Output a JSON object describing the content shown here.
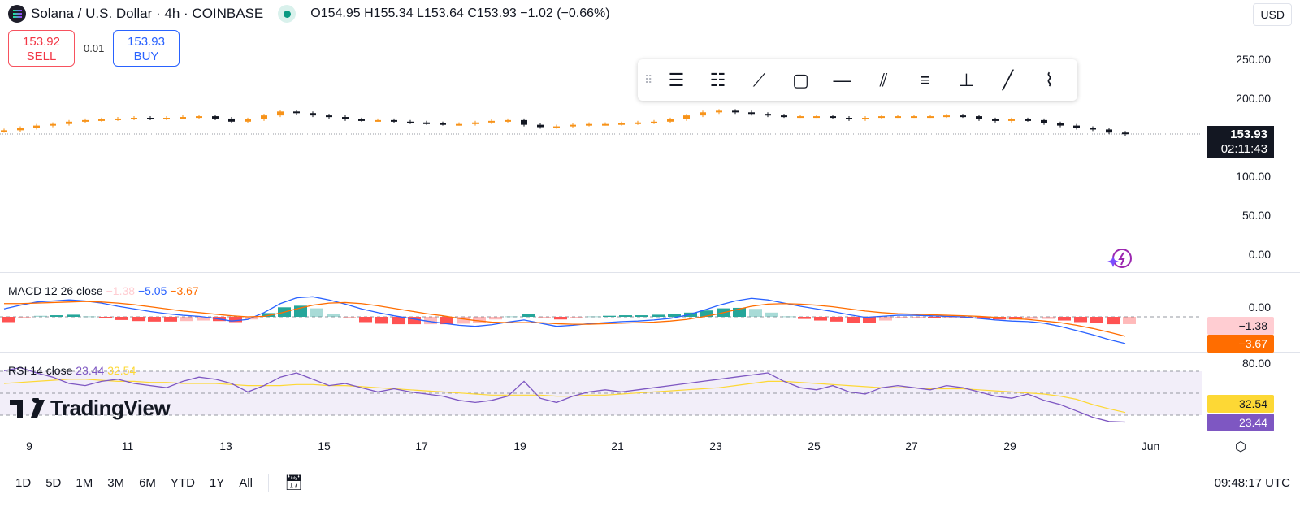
{
  "header": {
    "symbol": "Solana / U.S. Dollar · 4h · COINBASE",
    "ohlc": "O154.95 H155.34 L153.64 C153.93 −1.02 (−0.66%)",
    "currency": "USD"
  },
  "trade": {
    "sell_price": "153.92",
    "sell_label": "SELL",
    "spread": "0.01",
    "buy_price": "153.93",
    "buy_label": "BUY"
  },
  "toolbar": {
    "icons": [
      "pitchfork-icon",
      "fib-retracement-icon",
      "brush-icon",
      "rectangle-icon",
      "horizontal-line-icon",
      "parallel-channel-icon",
      "horizontal-rays-icon",
      "price-range-icon",
      "trend-line-icon",
      "path-icon"
    ]
  },
  "price_axis": {
    "ticks": [
      "250.00",
      "200.00",
      "100.00",
      "50.00",
      "0.00"
    ],
    "last_price": "153.93",
    "countdown": "02:11:43"
  },
  "macd": {
    "legend": "MACD 12 26 close",
    "hist": "−1.38",
    "macd": "−5.05",
    "signal": "−3.67",
    "axis_zero": "0.00"
  },
  "rsi": {
    "legend": "RSI 14 close",
    "rsi": "23.44",
    "ma": "32.54",
    "axis_top": "80.00"
  },
  "x_axis": {
    "labels": [
      "9",
      "11",
      "13",
      "15",
      "17",
      "19",
      "21",
      "23",
      "25",
      "27",
      "29",
      "Jun"
    ]
  },
  "bottom": {
    "ranges": [
      "1D",
      "5D",
      "1M",
      "3M",
      "6M",
      "YTD",
      "1Y",
      "All"
    ],
    "time": "09:48:17 UTC"
  },
  "brand": "TradingView",
  "colors": {
    "up": "#f7931a",
    "down": "#131722",
    "macd": "#2962ff",
    "signal": "#ff6d00",
    "rsi": "#7e57c2",
    "rsi_ma": "#fdd835",
    "hist_pos": "#26a69a",
    "hist_neg": "#ff5252"
  },
  "chart_data": {
    "type": "candlestick",
    "price_close": [
      159,
      162,
      165,
      167,
      170,
      172,
      173,
      174,
      175,
      174,
      175,
      176,
      177,
      174,
      170,
      173,
      178,
      183,
      181,
      178,
      176,
      173,
      172,
      172,
      170,
      169,
      168,
      167,
      167,
      169,
      171,
      172,
      166,
      163,
      164,
      166,
      167,
      167,
      168,
      169,
      170,
      173,
      178,
      182,
      184,
      182,
      180,
      178,
      177,
      177,
      177,
      175,
      173,
      175,
      177,
      177,
      177,
      177,
      178,
      177,
      173,
      171,
      173,
      172,
      168,
      165,
      162,
      160,
      156,
      154
    ],
    "price_ylim": [
      0,
      250
    ],
    "macd_line": [
      1.5,
      2.2,
      2.8,
      3.0,
      3.2,
      3.0,
      2.6,
      2.0,
      1.5,
      1.0,
      0.6,
      0.3,
      0.1,
      -0.3,
      -0.8,
      -0.5,
      0.8,
      2.5,
      3.6,
      3.8,
      3.2,
      2.4,
      1.5,
      0.8,
      0.2,
      -0.3,
      -0.8,
      -1.2,
      -1.6,
      -1.8,
      -1.5,
      -1.0,
      -0.6,
      -1.2,
      -1.8,
      -1.6,
      -1.3,
      -1.1,
      -0.9,
      -0.8,
      -0.6,
      -0.3,
      0.3,
      1.2,
      2.2,
      3.0,
      3.5,
      3.2,
      2.6,
      2.0,
      1.5,
      1.0,
      0.4,
      -0.1,
      0.1,
      0.3,
      0.3,
      0.2,
      0.1,
      0.0,
      -0.3,
      -0.6,
      -0.8,
      -0.9,
      -1.2,
      -1.8,
      -2.6,
      -3.4,
      -4.3,
      -5.05
    ],
    "macd_signal": [
      2.5,
      2.5,
      2.6,
      2.7,
      2.8,
      2.9,
      2.8,
      2.6,
      2.3,
      1.9,
      1.5,
      1.1,
      0.8,
      0.5,
      0.2,
      0.0,
      0.1,
      0.7,
      1.5,
      2.2,
      2.6,
      2.7,
      2.5,
      2.1,
      1.6,
      1.1,
      0.6,
      0.2,
      -0.3,
      -0.7,
      -1.0,
      -1.1,
      -1.1,
      -1.1,
      -1.3,
      -1.4,
      -1.4,
      -1.3,
      -1.2,
      -1.1,
      -1.0,
      -0.8,
      -0.5,
      0.0,
      0.6,
      1.3,
      2.0,
      2.4,
      2.5,
      2.4,
      2.2,
      1.9,
      1.5,
      1.1,
      0.8,
      0.6,
      0.5,
      0.4,
      0.3,
      0.2,
      0.1,
      -0.1,
      -0.3,
      -0.5,
      -0.8,
      -1.1,
      -1.6,
      -2.2,
      -2.9,
      -3.67
    ],
    "rsi": [
      72,
      75,
      70,
      66,
      60,
      58,
      62,
      64,
      60,
      58,
      56,
      62,
      66,
      64,
      60,
      52,
      58,
      66,
      70,
      64,
      58,
      60,
      56,
      52,
      55,
      52,
      50,
      48,
      44,
      42,
      44,
      48,
      62,
      46,
      42,
      48,
      52,
      54,
      52,
      54,
      56,
      58,
      60,
      62,
      64,
      66,
      68,
      70,
      62,
      56,
      54,
      58,
      52,
      50,
      56,
      58,
      56,
      54,
      58,
      56,
      52,
      48,
      46,
      50,
      44,
      40,
      34,
      28,
      24,
      23.44
    ],
    "rsi_ma": [
      60,
      61,
      62,
      63,
      64,
      64,
      63,
      62,
      62,
      61,
      61,
      60,
      60,
      60,
      59,
      58,
      58,
      58,
      59,
      59,
      58,
      58,
      57,
      56,
      55,
      54,
      53,
      52,
      51,
      50,
      49,
      49,
      49,
      49,
      48,
      48,
      49,
      49,
      50,
      51,
      52,
      53,
      54,
      55,
      56,
      58,
      60,
      62,
      62,
      61,
      60,
      59,
      58,
      57,
      56,
      56,
      56,
      55,
      55,
      55,
      54,
      53,
      52,
      51,
      50,
      48,
      45,
      40,
      36,
      32.54
    ],
    "rsi_bands": [
      70,
      50,
      30
    ]
  }
}
